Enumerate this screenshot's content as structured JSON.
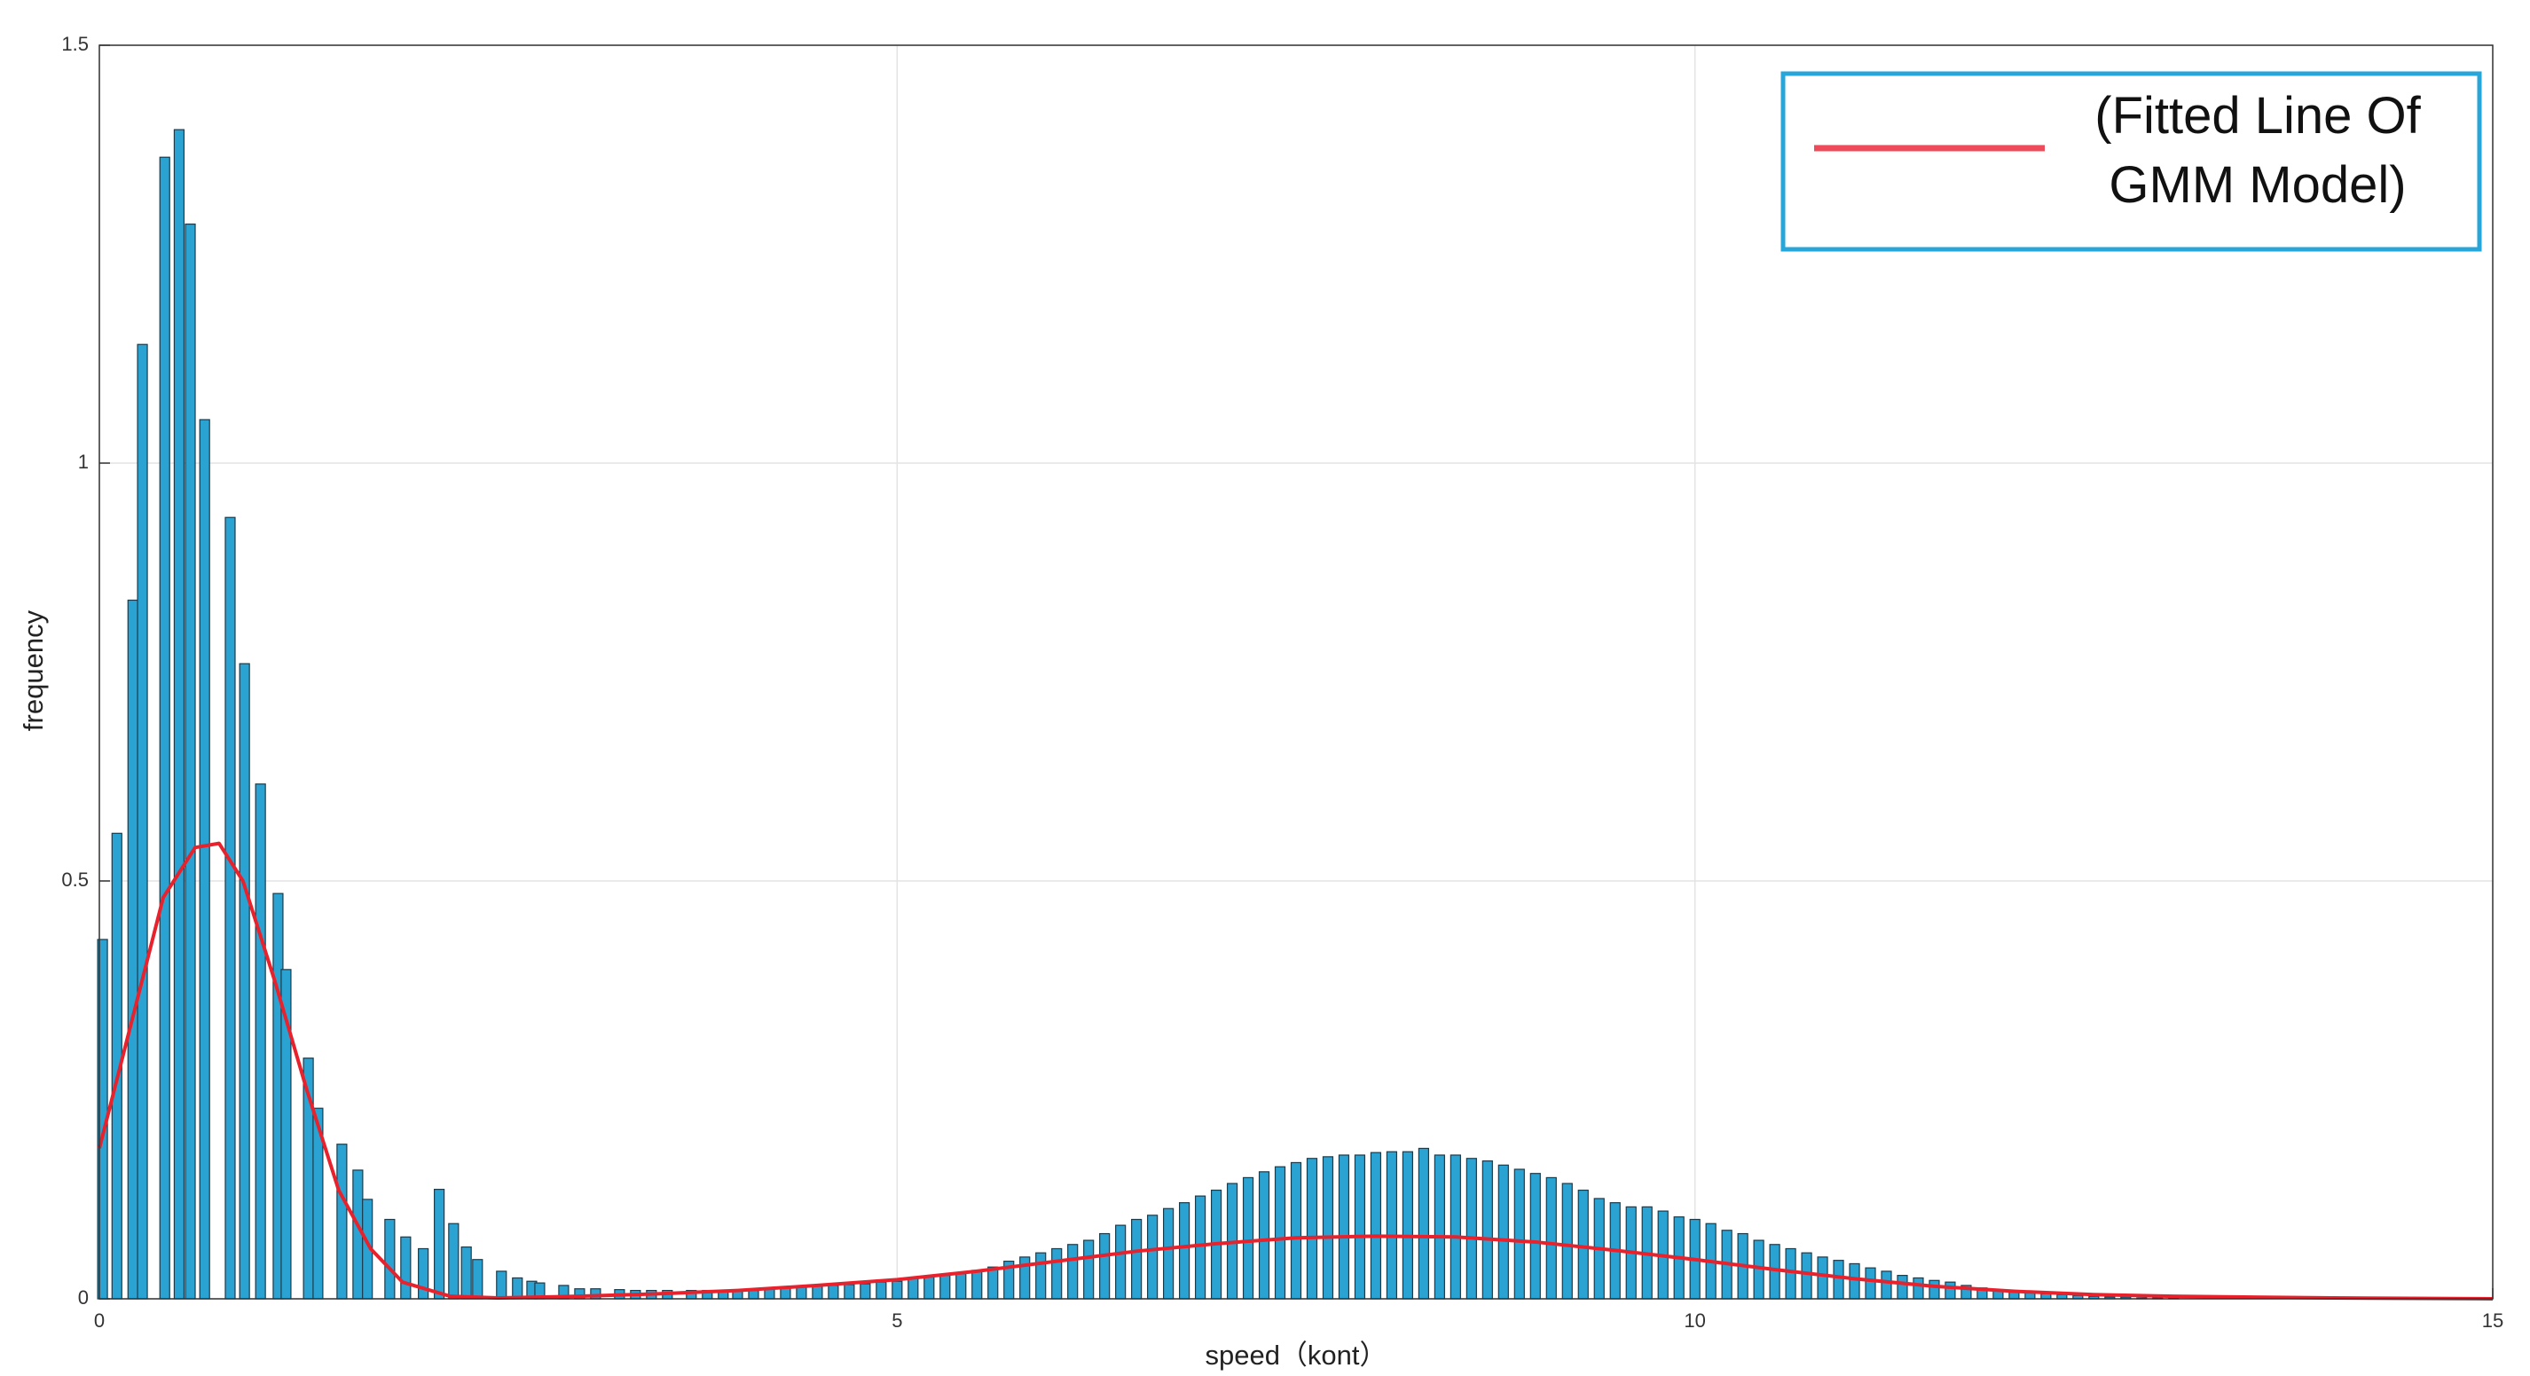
{
  "chart_data": {
    "type": "bar",
    "xlabel": "speed（kont）",
    "ylabel": "frequency",
    "xlim": [
      0,
      15
    ],
    "ylim": [
      0,
      1.5
    ],
    "xticks": [
      0,
      5,
      10,
      15
    ],
    "yticks": [
      0,
      0.5,
      1,
      1.5
    ],
    "grid": true,
    "series": [
      {
        "type": "bar",
        "color": "#2ba3d2",
        "x": [
          0.02,
          0.11,
          0.21,
          0.27,
          0.41,
          0.5,
          0.57,
          0.66,
          0.82,
          0.91,
          1.01,
          1.12,
          1.17,
          1.31,
          1.37,
          1.52,
          1.62,
          1.68,
          1.82,
          1.92,
          2.03,
          2.13,
          2.22,
          2.3,
          2.37,
          2.52,
          2.62,
          2.71,
          2.76,
          2.91,
          3.01,
          3.11,
          3.26,
          3.36,
          3.46,
          3.56,
          3.71,
          3.81,
          3.91,
          4.0,
          4.1,
          4.2,
          4.3,
          4.4,
          4.5,
          4.6,
          4.7,
          4.8,
          4.9,
          5.0,
          5.1,
          5.2,
          5.3,
          5.4,
          5.5,
          5.6,
          5.7,
          5.8,
          5.9,
          6.0,
          6.1,
          6.2,
          6.3,
          6.4,
          6.5,
          6.6,
          6.7,
          6.8,
          6.9,
          7.0,
          7.1,
          7.2,
          7.3,
          7.4,
          7.5,
          7.6,
          7.7,
          7.8,
          7.9,
          8.0,
          8.1,
          8.2,
          8.3,
          8.4,
          8.5,
          8.6,
          8.7,
          8.8,
          8.9,
          9.0,
          9.1,
          9.2,
          9.3,
          9.4,
          9.5,
          9.6,
          9.7,
          9.8,
          9.9,
          10.0,
          10.1,
          10.2,
          10.3,
          10.4,
          10.5,
          10.6,
          10.7,
          10.8,
          10.9,
          11.0,
          11.1,
          11.2,
          11.3,
          11.4,
          11.5,
          11.6,
          11.7,
          11.8,
          11.9,
          12.0,
          12.1,
          12.2,
          12.3,
          12.4,
          12.5,
          12.6,
          12.7,
          12.8,
          12.9,
          13.0
        ],
        "values": [
          0.43,
          0.557,
          0.836,
          1.142,
          1.366,
          1.399,
          1.286,
          1.052,
          0.935,
          0.76,
          0.616,
          0.485,
          0.394,
          0.288,
          0.228,
          0.185,
          0.154,
          0.119,
          0.095,
          0.074,
          0.06,
          0.131,
          0.09,
          0.062,
          0.047,
          0.033,
          0.025,
          0.021,
          0.019,
          0.016,
          0.012,
          0.012,
          0.011,
          0.01,
          0.01,
          0.01,
          0.01,
          0.01,
          0.01,
          0.01,
          0.01,
          0.012,
          0.013,
          0.014,
          0.015,
          0.016,
          0.017,
          0.018,
          0.02,
          0.021,
          0.024,
          0.026,
          0.028,
          0.03,
          0.034,
          0.038,
          0.045,
          0.05,
          0.055,
          0.06,
          0.065,
          0.07,
          0.078,
          0.088,
          0.095,
          0.1,
          0.108,
          0.115,
          0.123,
          0.13,
          0.138,
          0.145,
          0.152,
          0.158,
          0.163,
          0.168,
          0.17,
          0.172,
          0.172,
          0.175,
          0.176,
          0.176,
          0.18,
          0.172,
          0.172,
          0.168,
          0.165,
          0.16,
          0.155,
          0.15,
          0.145,
          0.138,
          0.13,
          0.12,
          0.115,
          0.11,
          0.11,
          0.105,
          0.098,
          0.095,
          0.09,
          0.082,
          0.078,
          0.07,
          0.065,
          0.06,
          0.055,
          0.05,
          0.046,
          0.042,
          0.037,
          0.033,
          0.028,
          0.025,
          0.022,
          0.02,
          0.016,
          0.013,
          0.011,
          0.009,
          0.007,
          0.006,
          0.005,
          0.004,
          0.003,
          0.002,
          0.002,
          0.001,
          0.001,
          0.001
        ]
      },
      {
        "type": "line",
        "name": "(Fitted Line Of GMM Model)",
        "color": "#e8222c",
        "x": [
          0,
          0.2,
          0.4,
          0.6,
          0.75,
          0.9,
          1.1,
          1.3,
          1.5,
          1.7,
          1.9,
          2.2,
          2.5,
          3,
          3.5,
          4,
          4.5,
          5,
          5.5,
          6,
          6.5,
          7,
          7.5,
          8,
          8.5,
          9,
          9.5,
          10,
          10.5,
          11,
          11.5,
          12,
          12.5,
          13,
          14,
          15
        ],
        "values": [
          0.18,
          0.33,
          0.48,
          0.54,
          0.545,
          0.5,
          0.38,
          0.25,
          0.13,
          0.06,
          0.02,
          0.003,
          0.001,
          0.003,
          0.006,
          0.01,
          0.016,
          0.023,
          0.033,
          0.045,
          0.057,
          0.066,
          0.073,
          0.075,
          0.074,
          0.068,
          0.058,
          0.047,
          0.035,
          0.024,
          0.015,
          0.009,
          0.005,
          0.003,
          0.001,
          0
        ]
      }
    ]
  }
}
